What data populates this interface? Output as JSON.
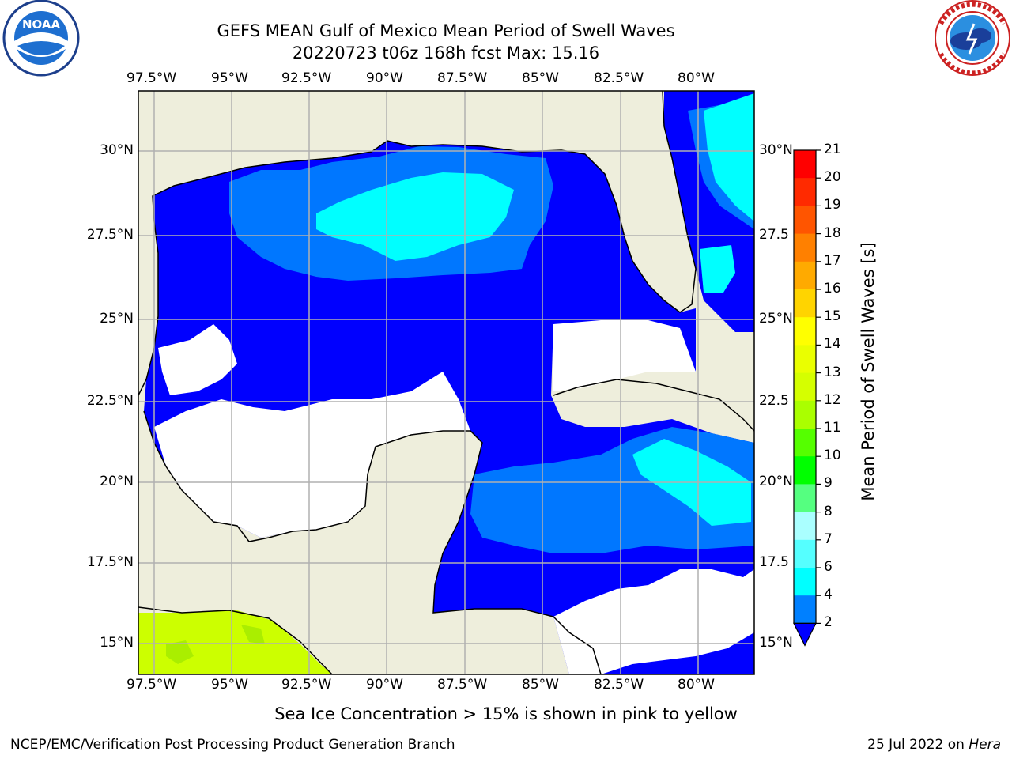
{
  "header": {
    "title_line1": "GEFS MEAN Gulf of Mexico Mean Period of Swell Waves",
    "title_line2": "20220723 t06z 168h fcst   Max: 15.16"
  },
  "logos": {
    "left": {
      "name": "NOAA",
      "text": "NOAA"
    },
    "right": {
      "name": "National Weather Service",
      "ring_text": "NATIONAL WEATHER SERVICE"
    }
  },
  "map": {
    "lon_ticks": [
      "97.5°W",
      "95°W",
      "92.5°W",
      "90°W",
      "87.5°W",
      "85°W",
      "82.5°W",
      "80°W"
    ],
    "lat_ticks_left": [
      "30°N",
      "27.5°N",
      "25°N",
      "22.5°N",
      "20°N",
      "17.5°N",
      "15°N"
    ],
    "lat_ticks_right": [
      "30°N",
      "27.5",
      "25°N",
      "22.5",
      "20°N",
      "17.5",
      "15°N"
    ],
    "colors": {
      "land": "#eeeedc",
      "ocean_low": "#0000ff",
      "ocean_mid": "#0077ff",
      "ocean_high": "#00ffff",
      "ice": "#ccff00"
    }
  },
  "colorbar": {
    "label": "Mean Period of Swell Waves [s]",
    "ticks": [
      "21",
      "20",
      "19",
      "18",
      "17",
      "16",
      "15",
      "14",
      "13",
      "12",
      "11",
      "10",
      "9",
      "8",
      "7",
      "6",
      "4",
      "2"
    ],
    "colors": [
      "#ff0000",
      "#ff2a00",
      "#ff5500",
      "#ff8000",
      "#ffaa00",
      "#ffd400",
      "#ffff00",
      "#eaff00",
      "#d5ff00",
      "#aaff00",
      "#55ff00",
      "#00ff00",
      "#55ff80",
      "#aaffff",
      "#55ffff",
      "#00ffff",
      "#0080ff",
      "#0000ff"
    ]
  },
  "note": "Sea Ice Concentration > 15% is shown in pink to yellow",
  "footer": {
    "left": "NCEP/EMC/Verification Post Processing Product Generation Branch",
    "right_date": "25 Jul 2022 on ",
    "right_host": "Hera"
  }
}
